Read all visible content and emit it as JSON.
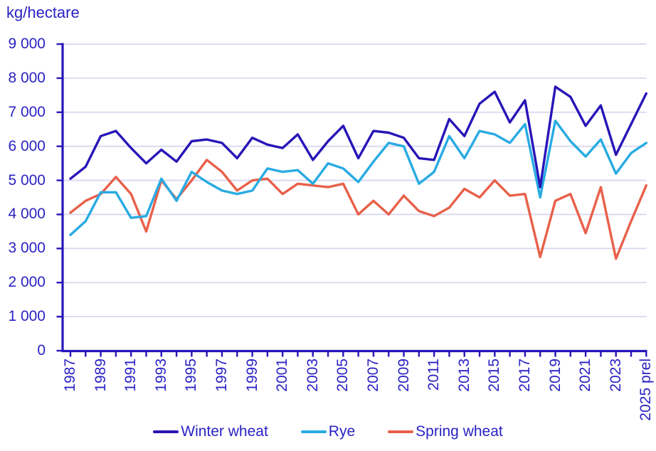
{
  "page": {
    "background": "#ffffff"
  },
  "colors": {
    "axis": "#2815b7",
    "grid": "#d8d7f0",
    "text": "#2a22c3",
    "winter_wheat": "#2815b7",
    "rye": "#29abe2",
    "spring_wheat": "#e8604a"
  },
  "legend": [
    {
      "id": "winter-wheat",
      "label": "Winter wheat",
      "color": "#2815b7"
    },
    {
      "id": "rye",
      "label": "Rye",
      "color": "#29abe2"
    },
    {
      "id": "spring-wheat",
      "label": "Spring wheat",
      "color": "#e8604a"
    }
  ],
  "chart_data": {
    "type": "line",
    "title": "",
    "ylabel": "kg/hectare",
    "xlabel": "",
    "ylim": [
      0,
      9000
    ],
    "y_tick_step": 1000,
    "grid": "horizontal",
    "legend_position": "bottom",
    "years": [
      1987,
      1988,
      1989,
      1990,
      1991,
      1992,
      1993,
      1994,
      1995,
      1996,
      1997,
      1998,
      1999,
      2000,
      2001,
      2002,
      2003,
      2004,
      2005,
      2006,
      2007,
      2008,
      2009,
      2010,
      2011,
      2012,
      2013,
      2014,
      2015,
      2016,
      2017,
      2018,
      2019,
      2020,
      2021,
      2022,
      2023,
      2024,
      2025
    ],
    "x_tick_labels": [
      "1987",
      "1989",
      "1991",
      "1993",
      "1995",
      "1997",
      "1999",
      "2001",
      "2003",
      "2005",
      "2007",
      "2009",
      "2011",
      "2013",
      "2015",
      "2017",
      "2019",
      "2021",
      "2023",
      "2025 prel"
    ],
    "y_tick_labels": [
      "0",
      "1 000",
      "2 000",
      "3 000",
      "4 000",
      "5 000",
      "6 000",
      "7 000",
      "8 000",
      "9 000"
    ],
    "series": [
      {
        "name": "Winter wheat",
        "id": "winter-wheat",
        "color": "#2815b7",
        "values": [
          5050,
          5400,
          6300,
          6450,
          5950,
          5500,
          5900,
          5550,
          6150,
          6200,
          6100,
          5650,
          6250,
          6050,
          5950,
          6350,
          5600,
          6150,
          6600,
          5650,
          6450,
          6400,
          6250,
          5650,
          5600,
          6800,
          6300,
          7250,
          7600,
          6700,
          7350,
          4800,
          7750,
          7450,
          6600,
          7200,
          5750,
          6650,
          7550
        ]
      },
      {
        "name": "Rye",
        "id": "rye",
        "color": "#29abe2",
        "values": [
          3400,
          3800,
          4650,
          4650,
          3900,
          3950,
          5050,
          4400,
          5250,
          4950,
          4700,
          4600,
          4700,
          5350,
          5250,
          5300,
          4900,
          5500,
          5350,
          4950,
          5550,
          6100,
          6000,
          4900,
          5250,
          6300,
          5650,
          6450,
          6350,
          6100,
          6650,
          4500,
          6750,
          6150,
          5700,
          6200,
          5200,
          5800,
          6100
        ]
      },
      {
        "name": "Spring wheat",
        "id": "spring-wheat",
        "color": "#e8604a",
        "values": [
          4050,
          4400,
          4600,
          5100,
          4600,
          3500,
          5000,
          4450,
          5000,
          5600,
          5250,
          4700,
          5000,
          5050,
          4600,
          4900,
          4850,
          4800,
          4900,
          4000,
          4400,
          4000,
          4550,
          4100,
          3950,
          4200,
          4750,
          4500,
          5000,
          4550,
          4600,
          2750,
          4400,
          4600,
          3450,
          4800,
          2700,
          3800,
          4850
        ]
      }
    ]
  }
}
